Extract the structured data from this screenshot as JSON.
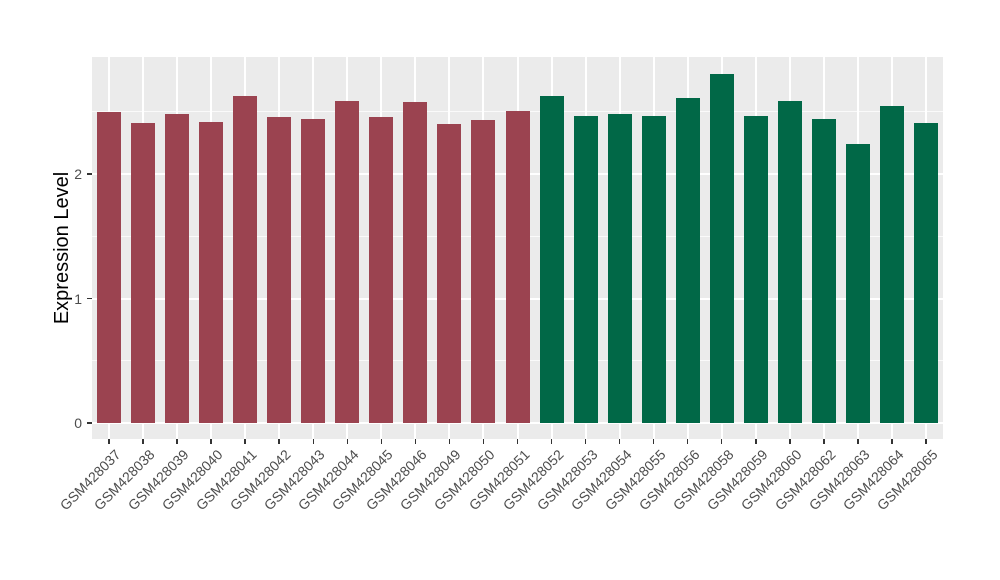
{
  "figure": {
    "background_color": "#FFFFFF",
    "panel_background_color": "#EBEBEB",
    "gridline_color": "#FFFFFF",
    "tick_mark_color": "#333333",
    "tick_label_color": "#4D4D4D",
    "axis_title_color": "#000000"
  },
  "chart_data": {
    "type": "bar",
    "title": "",
    "xlabel": "",
    "ylabel": "Expression Level",
    "ylim": [
      0,
      2.94
    ],
    "yticks": [
      0,
      1,
      2
    ],
    "yticks_minor": [
      0.5,
      1.5,
      2.5
    ],
    "grid": "white major+minor horizontal lines and white vertical lines at category centers on gray panel",
    "legend_position": "none",
    "categories": [
      "GSM428037",
      "GSM428038",
      "GSM428039",
      "GSM428040",
      "GSM428041",
      "GSM428042",
      "GSM428043",
      "GSM428044",
      "GSM428045",
      "GSM428046",
      "GSM428049",
      "GSM428050",
      "GSM428051",
      "GSM428052",
      "GSM428053",
      "GSM428054",
      "GSM428055",
      "GSM428056",
      "GSM428058",
      "GSM428059",
      "GSM428060",
      "GSM428062",
      "GSM428063",
      "GSM428064",
      "GSM428065"
    ],
    "values": [
      2.5,
      2.41,
      2.48,
      2.42,
      2.63,
      2.46,
      2.44,
      2.59,
      2.46,
      2.58,
      2.4,
      2.43,
      2.51,
      2.63,
      2.47,
      2.48,
      2.47,
      2.61,
      2.8,
      2.47,
      2.59,
      2.44,
      2.24,
      2.55,
      2.41
    ],
    "bar_groups": [
      "maroon",
      "maroon",
      "maroon",
      "maroon",
      "maroon",
      "maroon",
      "maroon",
      "maroon",
      "maroon",
      "maroon",
      "maroon",
      "maroon",
      "maroon",
      "green",
      "green",
      "green",
      "green",
      "green",
      "green",
      "green",
      "green",
      "green",
      "green",
      "green",
      "green"
    ],
    "group_colors": {
      "maroon": "#9B4350",
      "green": "#016847"
    }
  }
}
